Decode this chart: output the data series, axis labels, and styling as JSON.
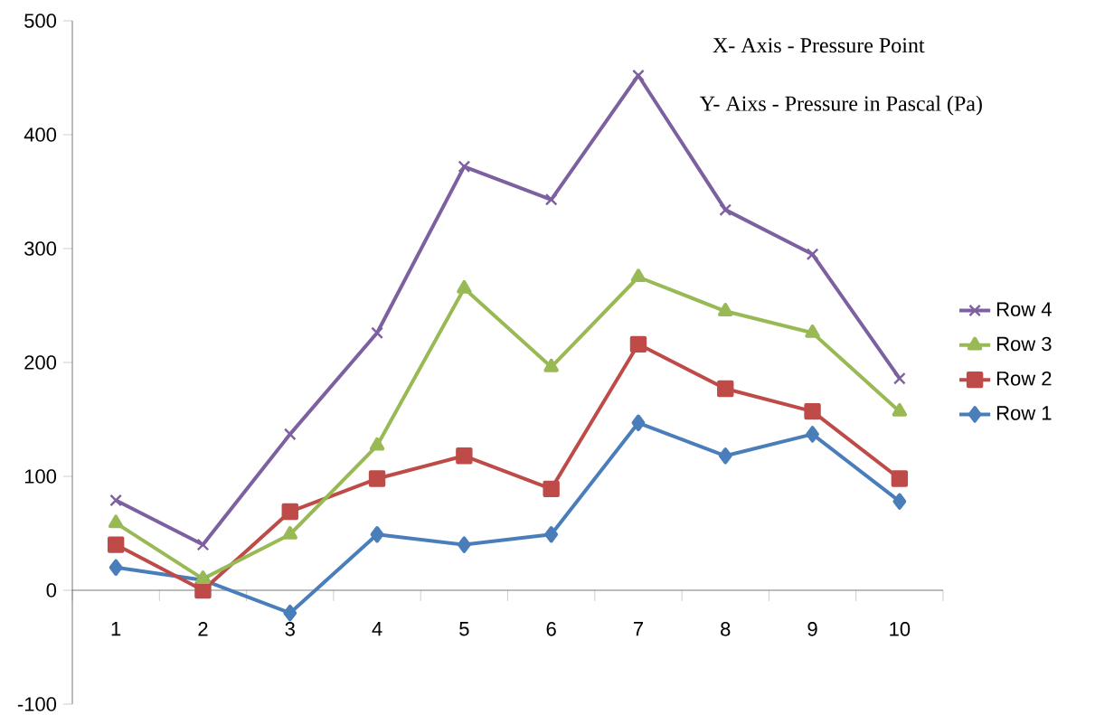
{
  "chart_data": {
    "type": "line",
    "categories": [
      "1",
      "2",
      "3",
      "4",
      "5",
      "6",
      "7",
      "8",
      "9",
      "10"
    ],
    "series": [
      {
        "name": "Row 1",
        "color": "#4a7ebb",
        "marker": "diamond",
        "values": [
          20,
          9,
          -20,
          49,
          40,
          49,
          147,
          118,
          137,
          78
        ]
      },
      {
        "name": "Row 2",
        "color": "#be4b48",
        "marker": "square",
        "values": [
          40,
          0,
          69,
          98,
          118,
          89,
          216,
          177,
          157,
          98
        ]
      },
      {
        "name": "Row 3",
        "color": "#98b954",
        "marker": "triangle",
        "values": [
          59,
          10,
          49,
          127,
          265,
          196,
          275,
          245,
          226,
          157
        ]
      },
      {
        "name": "Row 4",
        "color": "#7d60a0",
        "marker": "cross",
        "values": [
          79,
          40,
          137,
          226,
          372,
          343,
          452,
          334,
          295,
          186
        ]
      }
    ],
    "ylim": [
      -100,
      500
    ],
    "yticks": [
      -100,
      0,
      100,
      200,
      300,
      400,
      500
    ],
    "legend": "right",
    "grid": false,
    "line_style": "solid",
    "annotations": [
      "X- Axis - Pressure Point",
      "Y- Aixs - Pressure in Pascal (Pa)"
    ]
  }
}
